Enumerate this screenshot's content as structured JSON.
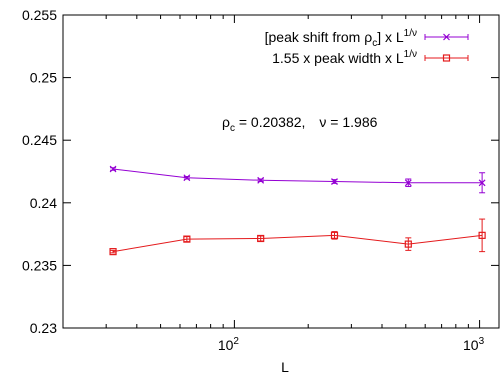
{
  "chart_data": {
    "type": "line",
    "xlabel": "L",
    "ylabel": "",
    "xscale": "log",
    "xlim": [
      20,
      1200
    ],
    "ylim": [
      0.23,
      0.255
    ],
    "y_ticks": [
      "0.23",
      "0.235",
      "0.24",
      "0.245",
      "0.25",
      "0.255"
    ],
    "x_ticks": [
      {
        "value": 100,
        "base": "10",
        "exp": "2"
      },
      {
        "value": 1000,
        "base": "10",
        "exp": "3"
      }
    ],
    "grid": false,
    "legend_position": "top-right",
    "legend": [
      {
        "prefix": "[peak shift from  ρ",
        "sub": "c",
        "suffix": "] x  L",
        "sup": "1/ν"
      },
      {
        "prefix": "1.55 x peak width x L",
        "sub": "",
        "suffix": "",
        "sup": "1/ν"
      }
    ],
    "annotation": {
      "rho": "ρ",
      "rho_sub": "c",
      "rho_value": " = 0.20382,",
      "nu": "ν = 1.986"
    },
    "series": [
      {
        "color": "#9400d3",
        "marker": "x",
        "x": [
          32,
          64,
          128,
          256,
          512,
          1024
        ],
        "y": [
          0.2427,
          0.242,
          0.2418,
          0.2417,
          0.2416,
          0.2416
        ],
        "err": [
          0.0001,
          0.0001,
          0.0001,
          0.00015,
          0.0003,
          0.0008
        ]
      },
      {
        "color": "#e41a1c",
        "marker": "square",
        "x": [
          32,
          64,
          128,
          256,
          512,
          1024
        ],
        "y": [
          0.2361,
          0.2371,
          0.23715,
          0.2374,
          0.2367,
          0.2374
        ],
        "err": [
          0.0001,
          0.0002,
          0.0002,
          0.0003,
          0.0005,
          0.0013
        ]
      }
    ]
  }
}
